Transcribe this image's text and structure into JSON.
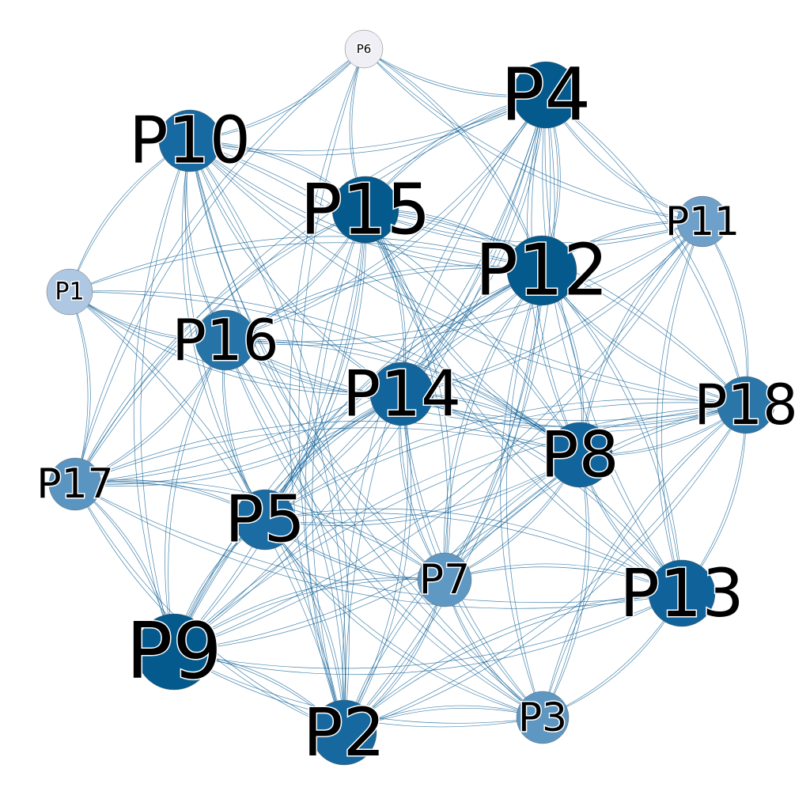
{
  "nodes": [
    {
      "id": "P1",
      "label": "P1",
      "color": "#aec7e3"
    },
    {
      "id": "P2",
      "label": "P2",
      "color": "#16689f"
    },
    {
      "id": "P3",
      "label": "P3",
      "color": "#5e97c2"
    },
    {
      "id": "P4",
      "label": "P4",
      "color": "#045a8d"
    },
    {
      "id": "P5",
      "label": "P5",
      "color": "#1a6ca3"
    },
    {
      "id": "P6",
      "label": "P6",
      "color": "#f0eff6"
    },
    {
      "id": "P7",
      "label": "P7",
      "color": "#5f98c3"
    },
    {
      "id": "P8",
      "label": "P8",
      "color": "#12659c"
    },
    {
      "id": "P9",
      "label": "P9",
      "color": "#045a8d"
    },
    {
      "id": "P10",
      "label": "P10",
      "color": "#166aa1"
    },
    {
      "id": "P11",
      "label": "P11",
      "color": "#6ea0c9"
    },
    {
      "id": "P12",
      "label": "P12",
      "color": "#045a8d"
    },
    {
      "id": "P13",
      "label": "P13",
      "color": "#0f639a"
    },
    {
      "id": "P14",
      "label": "P14",
      "color": "#12659c"
    },
    {
      "id": "P15",
      "label": "P15",
      "color": "#045a8d"
    },
    {
      "id": "P16",
      "label": "P16",
      "color": "#2573a7"
    },
    {
      "id": "P17",
      "label": "P17",
      "color": "#5a95c1"
    },
    {
      "id": "P18",
      "label": "P18",
      "color": "#2a76a9"
    }
  ],
  "edges": [
    [
      "P6",
      "P4"
    ],
    [
      "P6",
      "P10"
    ],
    [
      "P6",
      "P15"
    ],
    [
      "P6",
      "P12"
    ],
    [
      "P6",
      "P11"
    ],
    [
      "P6",
      "P2"
    ],
    [
      "P6",
      "P17"
    ],
    [
      "P4",
      "P10"
    ],
    [
      "P4",
      "P15"
    ],
    [
      "P4",
      "P12"
    ],
    [
      "P4",
      "P11"
    ],
    [
      "P4",
      "P18"
    ],
    [
      "P4",
      "P8"
    ],
    [
      "P4",
      "P13"
    ],
    [
      "P4",
      "P14"
    ],
    [
      "P4",
      "P16"
    ],
    [
      "P4",
      "P5"
    ],
    [
      "P4",
      "P9"
    ],
    [
      "P4",
      "P7"
    ],
    [
      "P4",
      "P2"
    ],
    [
      "P4",
      "P17"
    ],
    [
      "P10",
      "P15"
    ],
    [
      "P10",
      "P12"
    ],
    [
      "P10",
      "P16"
    ],
    [
      "P10",
      "P14"
    ],
    [
      "P10",
      "P5"
    ],
    [
      "P10",
      "P9"
    ],
    [
      "P10",
      "P8"
    ],
    [
      "P10",
      "P1"
    ],
    [
      "P10",
      "P18"
    ],
    [
      "P10",
      "P7"
    ],
    [
      "P10",
      "P2"
    ],
    [
      "P10",
      "P3"
    ],
    [
      "P15",
      "P12"
    ],
    [
      "P15",
      "P11"
    ],
    [
      "P15",
      "P14"
    ],
    [
      "P15",
      "P16"
    ],
    [
      "P15",
      "P5"
    ],
    [
      "P15",
      "P8"
    ],
    [
      "P15",
      "P18"
    ],
    [
      "P15",
      "P13"
    ],
    [
      "P15",
      "P9"
    ],
    [
      "P15",
      "P17"
    ],
    [
      "P15",
      "P2"
    ],
    [
      "P15",
      "P7"
    ],
    [
      "P12",
      "P11"
    ],
    [
      "P12",
      "P18"
    ],
    [
      "P12",
      "P8"
    ],
    [
      "P12",
      "P13"
    ],
    [
      "P12",
      "P14"
    ],
    [
      "P12",
      "P16"
    ],
    [
      "P12",
      "P5"
    ],
    [
      "P12",
      "P9"
    ],
    [
      "P12",
      "P2"
    ],
    [
      "P12",
      "P7"
    ],
    [
      "P12",
      "P1"
    ],
    [
      "P12",
      "P3"
    ],
    [
      "P12",
      "P17"
    ],
    [
      "P11",
      "P18"
    ],
    [
      "P11",
      "P8"
    ],
    [
      "P11",
      "P13"
    ],
    [
      "P11",
      "P14"
    ],
    [
      "P11",
      "P16"
    ],
    [
      "P11",
      "P9"
    ],
    [
      "P1",
      "P16"
    ],
    [
      "P1",
      "P14"
    ],
    [
      "P1",
      "P8"
    ],
    [
      "P1",
      "P17"
    ],
    [
      "P1",
      "P2"
    ],
    [
      "P16",
      "P14"
    ],
    [
      "P16",
      "P5"
    ],
    [
      "P16",
      "P9"
    ],
    [
      "P16",
      "P17"
    ],
    [
      "P16",
      "P2"
    ],
    [
      "P16",
      "P8"
    ],
    [
      "P16",
      "P18"
    ],
    [
      "P16",
      "P3"
    ],
    [
      "P14",
      "P8"
    ],
    [
      "P14",
      "P18"
    ],
    [
      "P14",
      "P5"
    ],
    [
      "P14",
      "P7"
    ],
    [
      "P14",
      "P9"
    ],
    [
      "P14",
      "P2"
    ],
    [
      "P14",
      "P13"
    ],
    [
      "P14",
      "P3"
    ],
    [
      "P14",
      "P17"
    ],
    [
      "P18",
      "P8"
    ],
    [
      "P18",
      "P13"
    ],
    [
      "P18",
      "P9"
    ],
    [
      "P18",
      "P2"
    ],
    [
      "P18",
      "P3"
    ],
    [
      "P18",
      "P7"
    ],
    [
      "P18",
      "P5"
    ],
    [
      "P8",
      "P13"
    ],
    [
      "P8",
      "P5"
    ],
    [
      "P8",
      "P9"
    ],
    [
      "P8",
      "P2"
    ],
    [
      "P8",
      "P3"
    ],
    [
      "P8",
      "P7"
    ],
    [
      "P8",
      "P17"
    ],
    [
      "P17",
      "P5"
    ],
    [
      "P17",
      "P9"
    ],
    [
      "P17",
      "P7"
    ],
    [
      "P17",
      "P13"
    ],
    [
      "P17",
      "P2"
    ],
    [
      "P5",
      "P9"
    ],
    [
      "P5",
      "P7"
    ],
    [
      "P5",
      "P2"
    ],
    [
      "P5",
      "P13"
    ],
    [
      "P5",
      "P3"
    ],
    [
      "P7",
      "P9"
    ],
    [
      "P7",
      "P2"
    ],
    [
      "P7",
      "P3"
    ],
    [
      "P7",
      "P13"
    ],
    [
      "P13",
      "P9"
    ],
    [
      "P13",
      "P2"
    ],
    [
      "P13",
      "P3"
    ],
    [
      "P9",
      "P2"
    ],
    [
      "P9",
      "P3"
    ],
    [
      "P2",
      "P3"
    ]
  ],
  "edge_color": "#0b5d94"
}
